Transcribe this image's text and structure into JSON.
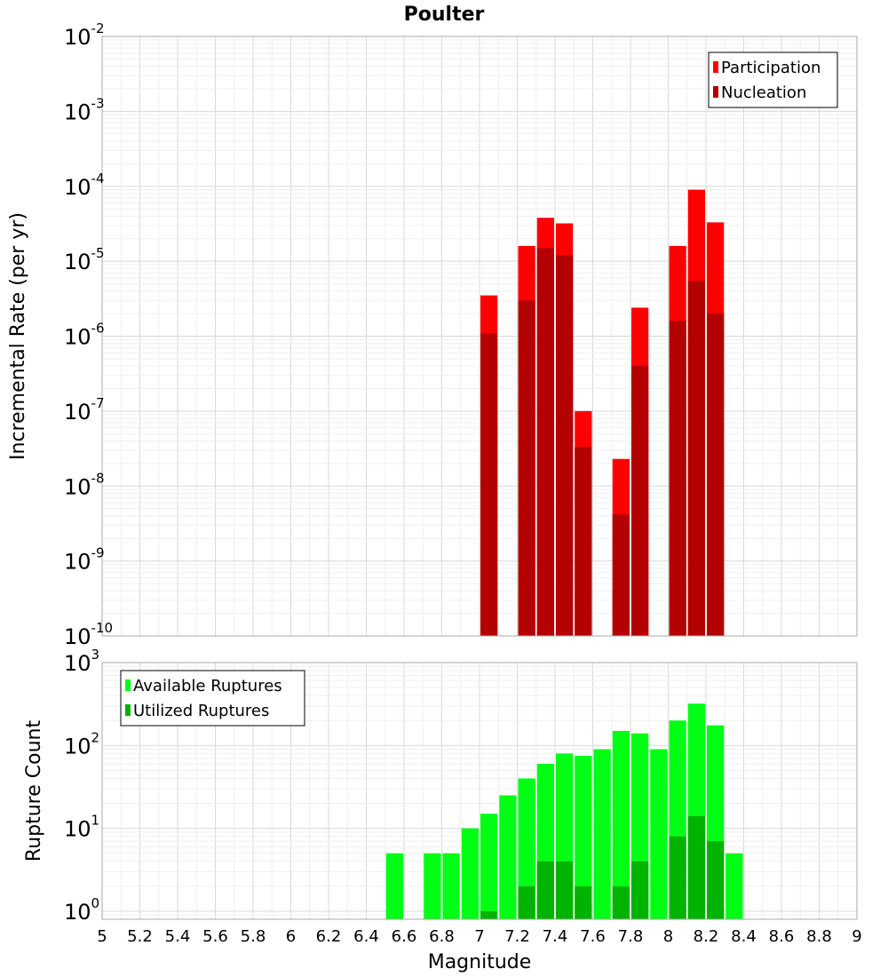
{
  "title": "Poulter",
  "colors": {
    "participation": "#ff0000",
    "nucleation": "#b30000",
    "available": "#00ff14",
    "utilized": "#00b300",
    "grid_major": "#d9d9d9",
    "grid_minor": "#efefef",
    "frame": "#aaaaaa"
  },
  "chart_data": [
    {
      "type": "bar",
      "panel": "top",
      "ylabel": "Incremental Rate (per yr)",
      "yscale": "log",
      "ylim": [
        1e-10,
        0.01
      ],
      "xlim": [
        5,
        9
      ],
      "grid": true,
      "legend_position": "top-right",
      "ytick_base": "10",
      "ytick_exponents": [
        "-10",
        "-9",
        "-8",
        "-7",
        "-6",
        "-5",
        "-4",
        "-3",
        "-2"
      ],
      "bin_width": 0.1,
      "series": [
        {
          "name": "Participation",
          "x": [
            7.05,
            7.25,
            7.35,
            7.45,
            7.55,
            7.75,
            7.85,
            8.05,
            8.15,
            8.25
          ],
          "values": [
            3.5e-06,
            1.6e-05,
            3.8e-05,
            3.2e-05,
            1e-07,
            2.3e-08,
            2.4e-06,
            1.6e-05,
            9e-05,
            3.3e-05
          ]
        },
        {
          "name": "Nucleation",
          "x": [
            7.05,
            7.25,
            7.35,
            7.45,
            7.55,
            7.75,
            7.85,
            8.05,
            8.15,
            8.25
          ],
          "values": [
            1.1e-06,
            3e-06,
            1.5e-05,
            1.2e-05,
            3.3e-08,
            4.2e-09,
            4e-07,
            1.6e-06,
            5.5e-06,
            2e-06
          ]
        }
      ]
    },
    {
      "type": "bar",
      "panel": "bottom",
      "ylabel": "Rupture Count",
      "xlabel": "Magnitude",
      "yscale": "log",
      "ylim": [
        0.8,
        1000
      ],
      "xlim": [
        5,
        9
      ],
      "grid": true,
      "legend_position": "top-left",
      "ytick_base": "10",
      "ytick_exponents": [
        "0",
        "1",
        "2",
        "3"
      ],
      "xtick_labels": [
        "5",
        "5.2",
        "5.4",
        "5.6",
        "5.8",
        "6",
        "6.2",
        "6.4",
        "6.6",
        "6.8",
        "7",
        "7.2",
        "7.4",
        "7.6",
        "7.8",
        "8",
        "8.2",
        "8.4",
        "8.6",
        "8.8",
        "9"
      ],
      "bin_width": 0.1,
      "series": [
        {
          "name": "Available Ruptures",
          "x": [
            6.55,
            6.75,
            6.85,
            6.95,
            7.05,
            7.15,
            7.25,
            7.35,
            7.45,
            7.55,
            7.65,
            7.75,
            7.85,
            7.95,
            8.05,
            8.15,
            8.25,
            8.35
          ],
          "values": [
            5,
            5,
            5,
            10,
            15,
            25,
            40,
            60,
            80,
            75,
            90,
            150,
            140,
            90,
            200,
            320,
            175,
            5
          ]
        },
        {
          "name": "Utilized Ruptures",
          "x": [
            7.05,
            7.25,
            7.35,
            7.45,
            7.55,
            7.75,
            7.85,
            8.05,
            8.15,
            8.25
          ],
          "values": [
            1,
            2,
            4,
            4,
            2,
            2,
            4,
            8,
            14,
            7
          ]
        }
      ]
    }
  ]
}
